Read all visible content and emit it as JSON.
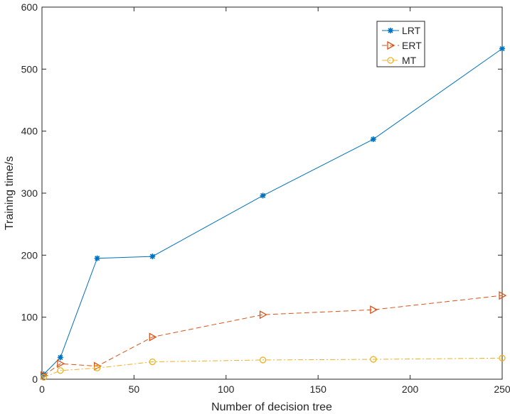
{
  "chart_data": {
    "type": "line",
    "title": "",
    "xlabel": "Number of decision tree",
    "ylabel": "Training time/s",
    "xlim": [
      0,
      250
    ],
    "ylim": [
      0,
      600
    ],
    "xticks": [
      "0",
      "50",
      "100",
      "150",
      "200",
      "250"
    ],
    "yticks": [
      "0",
      "100",
      "200",
      "300",
      "400",
      "500",
      "600"
    ],
    "grid": false,
    "legend": "top-right",
    "x": [
      1,
      10,
      30,
      60,
      120,
      180,
      250
    ],
    "series": [
      {
        "name": "LRT",
        "color": "#0072BD",
        "marker": "star",
        "dash": "solid",
        "values": [
          8,
          35,
          195,
          198,
          296,
          387,
          533
        ]
      },
      {
        "name": "ERT",
        "color": "#D95319",
        "marker": "triangle-right",
        "dash": "dashed",
        "values": [
          6,
          25,
          21,
          68,
          104,
          112,
          135
        ]
      },
      {
        "name": "MT",
        "color": "#EDB120",
        "marker": "circle",
        "dash": "dashdot",
        "values": [
          3,
          14,
          18,
          28,
          31,
          32,
          34
        ]
      }
    ]
  }
}
